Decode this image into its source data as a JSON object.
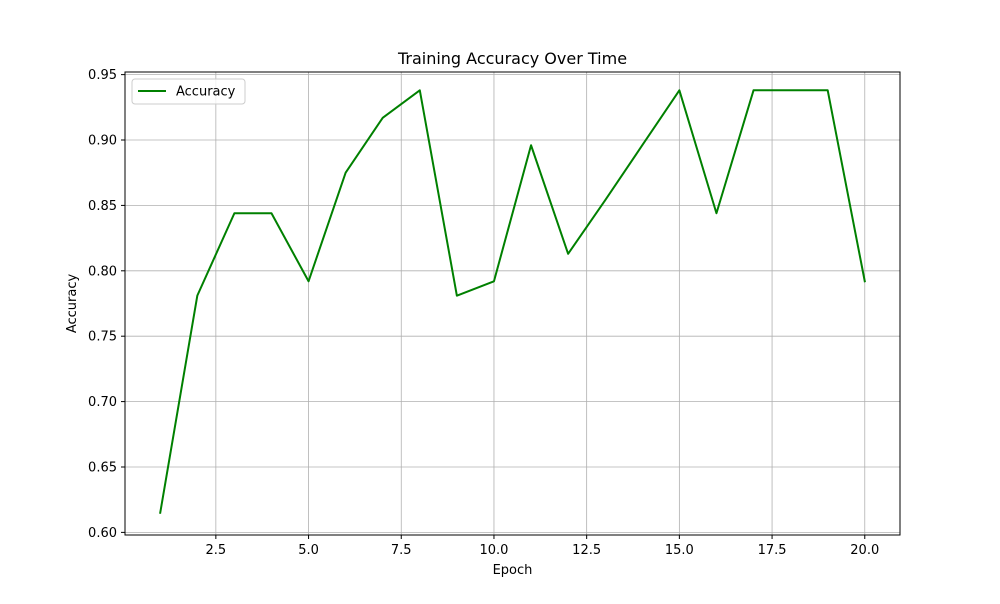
{
  "chart_data": {
    "type": "line",
    "title": "Training Accuracy Over Time",
    "xlabel": "Epoch",
    "ylabel": "Accuracy",
    "xlim": [
      0.05,
      20.95
    ],
    "ylim": [
      0.598,
      0.952
    ],
    "xticks": [
      2.5,
      5.0,
      7.5,
      10.0,
      12.5,
      15.0,
      17.5,
      20.0
    ],
    "xtick_labels": [
      "2.5",
      "5.0",
      "7.5",
      "10.0",
      "12.5",
      "15.0",
      "17.5",
      "20.0"
    ],
    "yticks": [
      0.6,
      0.65,
      0.7,
      0.75,
      0.8,
      0.85,
      0.9,
      0.95
    ],
    "ytick_labels": [
      "0.60",
      "0.65",
      "0.70",
      "0.75",
      "0.80",
      "0.85",
      "0.90",
      "0.95"
    ],
    "grid": true,
    "legend_position": "upper-left",
    "x": [
      1,
      2,
      3,
      4,
      5,
      6,
      7,
      8,
      9,
      10,
      11,
      12,
      13,
      14,
      15,
      16,
      17,
      18,
      19,
      20
    ],
    "series": [
      {
        "name": "Accuracy",
        "color": "#008000",
        "values": [
          0.615,
          0.781,
          0.844,
          0.844,
          0.792,
          0.875,
          0.917,
          0.938,
          0.781,
          0.792,
          0.896,
          0.813,
          0.854,
          0.896,
          0.938,
          0.844,
          0.938,
          0.938,
          0.938,
          0.792
        ]
      }
    ]
  }
}
